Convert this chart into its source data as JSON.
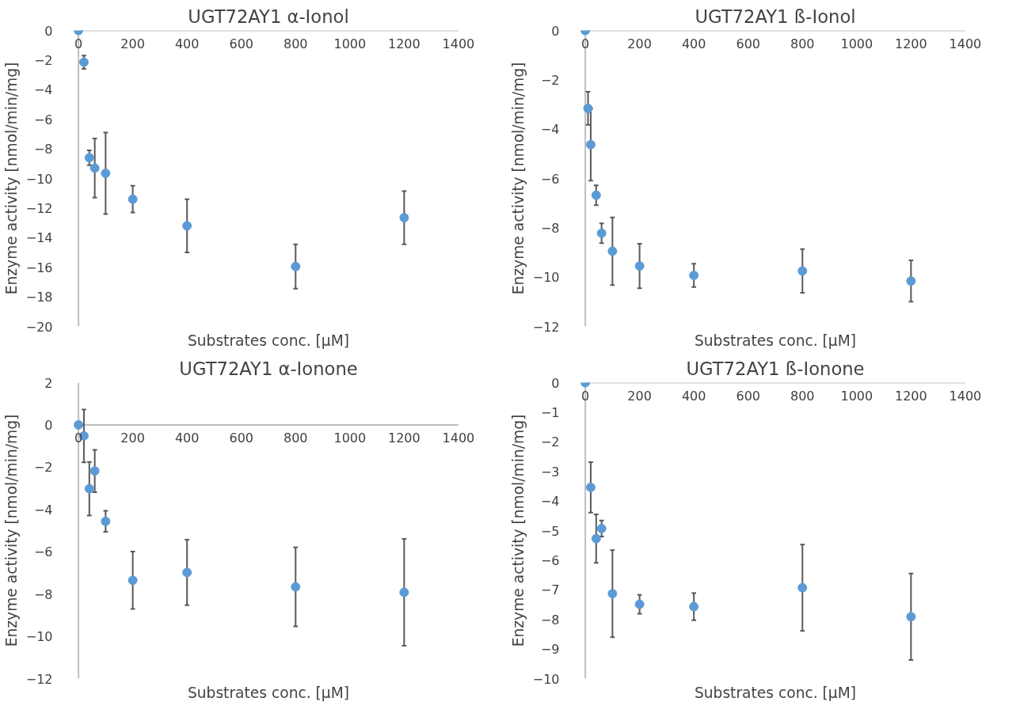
{
  "chart_data": [
    {
      "type": "scatter",
      "title": "UGT72AY1 α-Ionol",
      "xlabel": "Substrates conc. [µM]",
      "ylabel": "Enzyme activity [nmol/min/mg]",
      "marker": "circle",
      "xlim": [
        0,
        1400
      ],
      "ylim": [
        -20,
        0
      ],
      "xticks": [
        0,
        200,
        400,
        600,
        800,
        1000,
        1200,
        1400
      ],
      "yticks": [
        -20,
        -18,
        -16,
        -14,
        -12,
        -10,
        -8,
        -6,
        -4,
        -2,
        0
      ],
      "series": [
        {
          "color": "#5b9bd5",
          "x": [
            0,
            20,
            40,
            60,
            100,
            200,
            400,
            800,
            1200
          ],
          "values": [
            0,
            -2.15,
            -8.6,
            -9.3,
            -9.65,
            -11.4,
            -13.2,
            -15.95,
            -12.65
          ],
          "errors": [
            null,
            0.45,
            0.5,
            2.0,
            2.75,
            0.9,
            1.8,
            1.5,
            1.8
          ]
        }
      ]
    },
    {
      "type": "scatter",
      "title": "UGT72AY1 ß-Ionol",
      "xlabel": "Substrates conc. [µM]",
      "ylabel": "Enzyme activity [nmol/min/mg]",
      "marker": "circle",
      "xlim": [
        0,
        1400
      ],
      "ylim": [
        -12,
        0
      ],
      "xticks": [
        0,
        200,
        400,
        600,
        800,
        1000,
        1200,
        1400
      ],
      "yticks": [
        -12,
        -10,
        -8,
        -6,
        -4,
        -2,
        0
      ],
      "series": [
        {
          "color": "#5b9bd5",
          "x": [
            0,
            10,
            20,
            40,
            60,
            100,
            200,
            400,
            800,
            1200
          ],
          "values": [
            0,
            -3.16,
            -4.63,
            -6.68,
            -8.22,
            -8.95,
            -9.55,
            -9.93,
            -9.75,
            -10.16
          ],
          "errors": [
            null,
            0.67,
            1.46,
            0.4,
            0.4,
            1.37,
            0.9,
            0.47,
            0.89,
            0.84
          ]
        }
      ]
    },
    {
      "type": "scatter",
      "title": "UGT72AY1 α-Ionone",
      "xlabel": "Substrates conc. [µM]",
      "ylabel": "Enzyme activity [nmol/min/mg]",
      "marker": "circle",
      "xlim": [
        0,
        1400
      ],
      "ylim": [
        -12,
        2
      ],
      "xticks": [
        0,
        200,
        400,
        600,
        800,
        1000,
        1200,
        1400
      ],
      "yticks": [
        -12,
        -10,
        -8,
        -6,
        -4,
        -2,
        0,
        2
      ],
      "series": [
        {
          "color": "#5b9bd5",
          "x": [
            0,
            20,
            40,
            60,
            100,
            200,
            400,
            800,
            1200
          ],
          "values": [
            0,
            -0.52,
            -3.02,
            -2.18,
            -4.56,
            -7.35,
            -6.98,
            -7.66,
            -7.92
          ],
          "errors": [
            null,
            1.25,
            1.27,
            1.0,
            0.5,
            1.36,
            1.55,
            1.87,
            2.53
          ]
        }
      ]
    },
    {
      "type": "scatter",
      "title": "UGT72AY1 ß-Ionone",
      "xlabel": "Substrates conc. [µM]",
      "ylabel": "Enzyme activity [nmol/min/mg]",
      "marker": "circle",
      "xlim": [
        0,
        1400
      ],
      "ylim": [
        -10,
        0
      ],
      "xticks": [
        0,
        200,
        400,
        600,
        800,
        1000,
        1200,
        1400
      ],
      "yticks": [
        -10,
        -9,
        -8,
        -7,
        -6,
        -5,
        -4,
        -3,
        -2,
        -1,
        0
      ],
      "series": [
        {
          "color": "#5b9bd5",
          "x": [
            0,
            20,
            40,
            60,
            100,
            200,
            400,
            800,
            1200
          ],
          "values": [
            0,
            -3.54,
            -5.27,
            -4.93,
            -7.13,
            -7.49,
            -7.57,
            -6.93,
            -7.91
          ],
          "errors": [
            null,
            0.85,
            0.82,
            0.27,
            1.47,
            0.32,
            0.46,
            1.46,
            1.46
          ]
        }
      ]
    }
  ]
}
